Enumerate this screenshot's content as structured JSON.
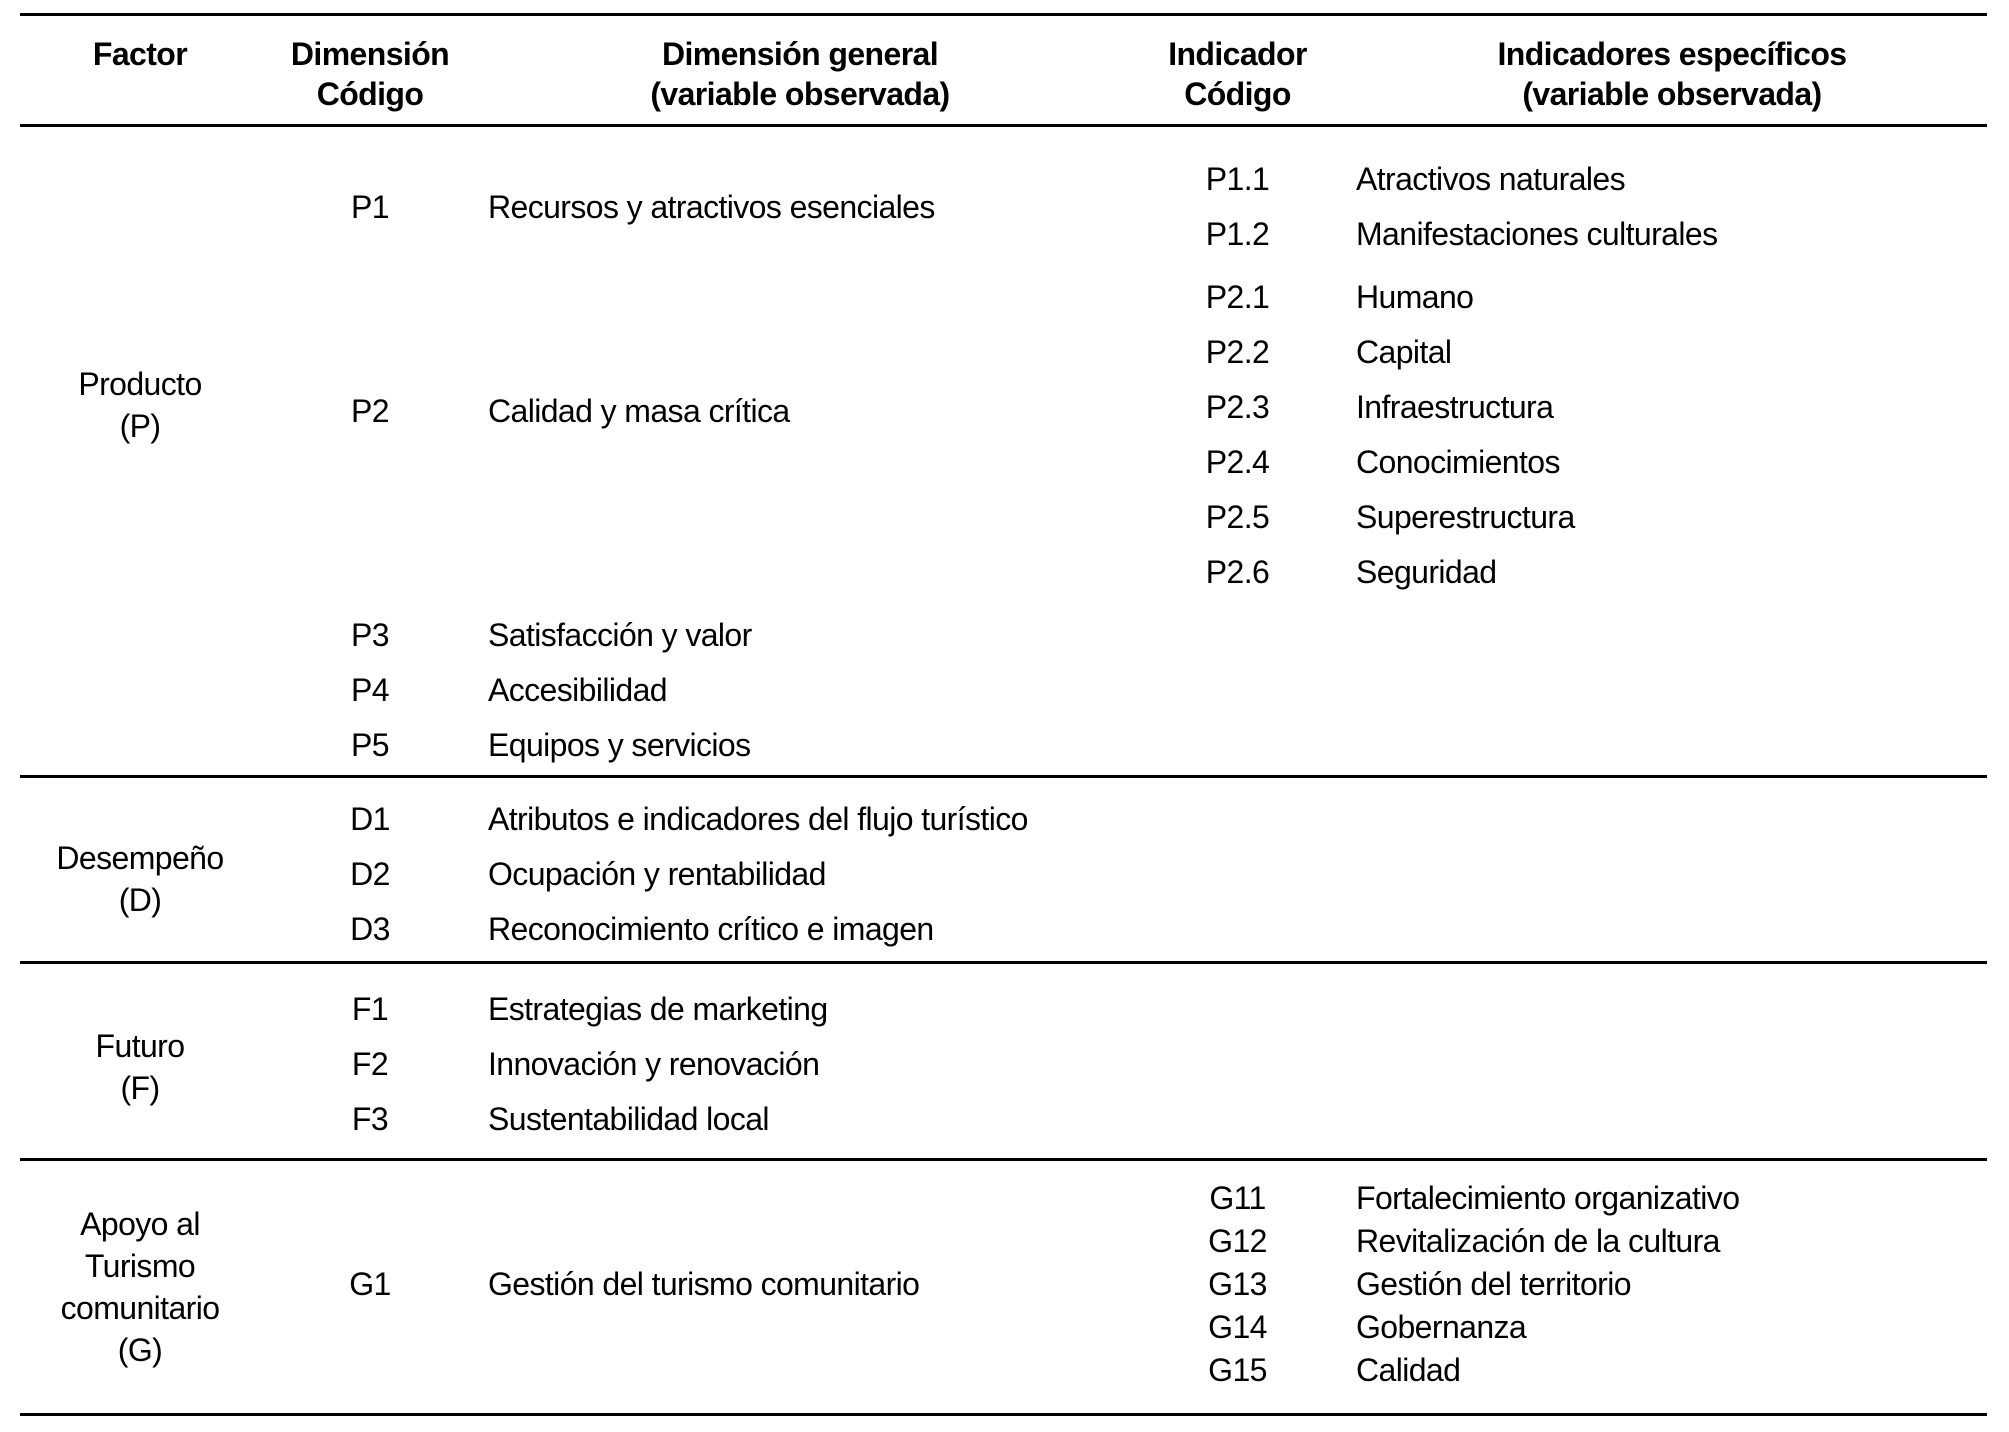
{
  "colors": {
    "background": "#ffffff",
    "text": "#000000",
    "rule": "#000000"
  },
  "table": {
    "headers": {
      "factor": "Factor",
      "dimension_code": "Dimensión\nCódigo",
      "dimension_general": "Dimensión general\n(variable observada)",
      "indicator_code": "Indicador\nCódigo",
      "indicators_specific": "Indicadores específicos\n(variable observada)"
    },
    "sections": [
      {
        "factor": "Producto\n(P)",
        "groups": [
          {
            "code": "P1",
            "label": "Recursos y atractivos esenciales",
            "indicators": [
              {
                "code": "P1.1",
                "label": "Atractivos naturales"
              },
              {
                "code": "P1.2",
                "label": "Manifestaciones culturales"
              }
            ]
          },
          {
            "code": "P2",
            "label": "Calidad y masa crítica",
            "indicators": [
              {
                "code": "P2.1",
                "label": "Humano"
              },
              {
                "code": "P2.2",
                "label": "Capital"
              },
              {
                "code": "P2.3",
                "label": "Infraestructura"
              },
              {
                "code": "P2.4",
                "label": "Conocimientos"
              },
              {
                "code": "P2.5",
                "label": "Superestructura"
              },
              {
                "code": "P2.6",
                "label": "Seguridad"
              }
            ]
          },
          {
            "code": "P3",
            "label": "Satisfacción y valor",
            "indicators": []
          },
          {
            "code": "P4",
            "label": "Accesibilidad",
            "indicators": []
          },
          {
            "code": "P5",
            "label": "Equipos y servicios",
            "indicators": []
          }
        ]
      },
      {
        "factor": "Desempeño\n(D)",
        "groups": [
          {
            "code": "D1",
            "label": "Atributos e indicadores del flujo turístico",
            "indicators": []
          },
          {
            "code": "D2",
            "label": "Ocupación y rentabilidad",
            "indicators": []
          },
          {
            "code": "D3",
            "label": "Reconocimiento crítico e imagen",
            "indicators": []
          }
        ]
      },
      {
        "factor": "Futuro\n(F)",
        "groups": [
          {
            "code": "F1",
            "label": "Estrategias de marketing",
            "indicators": []
          },
          {
            "code": "F2",
            "label": "Innovación y renovación",
            "indicators": []
          },
          {
            "code": "F3",
            "label": "Sustentabilidad local",
            "indicators": []
          }
        ]
      },
      {
        "factor": "Apoyo al\nTurismo\ncomunitario\n(G)",
        "groups": [
          {
            "code": "G1",
            "label": "Gestión del turismo comunitario",
            "indicators": [
              {
                "code": "G11",
                "label": "Fortalecimiento organizativo"
              },
              {
                "code": "G12",
                "label": "Revitalización de la cultura"
              },
              {
                "code": "G13",
                "label": "Gestión del territorio"
              },
              {
                "code": "G14",
                "label": "Gobernanza"
              },
              {
                "code": "G15",
                "label": "Calidad"
              }
            ]
          }
        ]
      }
    ]
  }
}
